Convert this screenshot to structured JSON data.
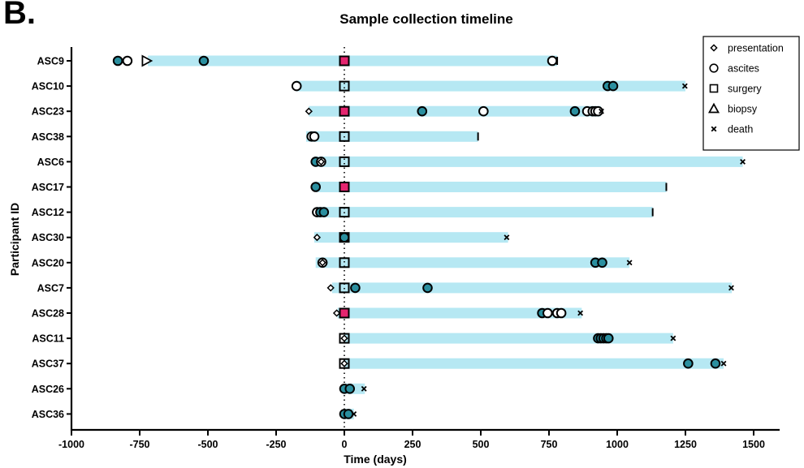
{
  "panel_letter": "B.",
  "chart_data": {
    "type": "scatter",
    "title": "Sample collection timeline",
    "xlabel": "Time (days)",
    "ylabel": "Participant ID",
    "xlim": [
      -1000,
      1600
    ],
    "xticks": [
      -1000,
      -750,
      -500,
      -250,
      0,
      250,
      500,
      750,
      1000,
      1250,
      1500
    ],
    "xtick_labels": [
      "-1000",
      "-750",
      "-500",
      "-250",
      "0",
      "250",
      "500",
      "750",
      "1000",
      "1250",
      "1500"
    ],
    "reference_line_x": 0,
    "legend": {
      "position": "top-right",
      "entries": [
        {
          "label": "presentation",
          "marker": "diamond"
        },
        {
          "label": "ascites",
          "marker": "circle"
        },
        {
          "label": "surgery",
          "marker": "square"
        },
        {
          "label": "biopsy",
          "marker": "triangle"
        },
        {
          "label": "death",
          "marker": "x"
        }
      ]
    },
    "colors": {
      "timeline_bar": "#b6e8f3",
      "ascites_fill": "#2a8f9f",
      "surgery_highlight": "#e5256f",
      "marker_outline": "#000000"
    },
    "participants": [
      {
        "id": "ASC9",
        "bar": [
          -720,
          780
        ],
        "events": [
          {
            "type": "ascites",
            "x": -830,
            "filled": true
          },
          {
            "type": "ascites",
            "x": -795,
            "filled": false
          },
          {
            "type": "biopsy",
            "x": -725
          },
          {
            "type": "ascites",
            "x": -515,
            "filled": true
          },
          {
            "type": "surgery",
            "x": 0,
            "highlight": true
          },
          {
            "type": "ascites",
            "x": 762,
            "filled": false
          },
          {
            "type": "end",
            "x": 780
          }
        ]
      },
      {
        "id": "ASC10",
        "bar": [
          -175,
          1250
        ],
        "events": [
          {
            "type": "presentation",
            "x": -175
          },
          {
            "type": "ascites",
            "x": -175,
            "filled": false
          },
          {
            "type": "surgery",
            "x": 0
          },
          {
            "type": "ascites",
            "x": 965,
            "filled": true
          },
          {
            "type": "ascites",
            "x": 985,
            "filled": true
          },
          {
            "type": "death",
            "x": 1248
          }
        ]
      },
      {
        "id": "ASC23",
        "bar": [
          -130,
          940
        ],
        "events": [
          {
            "type": "presentation",
            "x": -130
          },
          {
            "type": "surgery",
            "x": 0,
            "highlight": true
          },
          {
            "type": "ascites",
            "x": 285,
            "filled": true
          },
          {
            "type": "ascites",
            "x": 510,
            "filled": false
          },
          {
            "type": "ascites",
            "x": 845,
            "filled": true
          },
          {
            "type": "ascites",
            "x": 890,
            "filled": false
          },
          {
            "type": "ascites",
            "x": 910,
            "filled": false
          },
          {
            "type": "ascites",
            "x": 920,
            "filled": false
          },
          {
            "type": "ascites",
            "x": 930,
            "filled": false
          },
          {
            "type": "death",
            "x": 942
          }
        ]
      },
      {
        "id": "ASC38",
        "bar": [
          -140,
          490
        ],
        "events": [
          {
            "type": "ascites",
            "x": -120,
            "filled": false
          },
          {
            "type": "ascites",
            "x": -110,
            "filled": false
          },
          {
            "type": "surgery",
            "x": 0
          },
          {
            "type": "end",
            "x": 490
          }
        ]
      },
      {
        "id": "ASC6",
        "bar": [
          -110,
          1460
        ],
        "events": [
          {
            "type": "ascites",
            "x": -105,
            "filled": true
          },
          {
            "type": "ascites",
            "x": -85,
            "filled": false
          },
          {
            "type": "presentation",
            "x": -85
          },
          {
            "type": "surgery",
            "x": 0
          },
          {
            "type": "death",
            "x": 1460
          }
        ]
      },
      {
        "id": "ASC17",
        "bar": [
          -105,
          1180
        ],
        "events": [
          {
            "type": "ascites",
            "x": -105,
            "filled": true
          },
          {
            "type": "surgery",
            "x": 0,
            "highlight": true
          },
          {
            "type": "end",
            "x": 1180
          }
        ]
      },
      {
        "id": "ASC12",
        "bar": [
          -100,
          1130
        ],
        "events": [
          {
            "type": "ascites",
            "x": -100,
            "filled": false
          },
          {
            "type": "ascites",
            "x": -88,
            "filled": true
          },
          {
            "type": "ascites",
            "x": -75,
            "filled": true
          },
          {
            "type": "surgery",
            "x": 0
          },
          {
            "type": "end",
            "x": 1130
          }
        ]
      },
      {
        "id": "ASC30",
        "bar": [
          -110,
          600
        ],
        "events": [
          {
            "type": "presentation",
            "x": -100
          },
          {
            "type": "ascites",
            "x": 0,
            "filled": true
          },
          {
            "type": "surgery",
            "x": 0
          },
          {
            "type": "death",
            "x": 595
          }
        ]
      },
      {
        "id": "ASC20",
        "bar": [
          -105,
          1045
        ],
        "events": [
          {
            "type": "ascites",
            "x": -80,
            "filled": false
          },
          {
            "type": "presentation",
            "x": -80
          },
          {
            "type": "surgery",
            "x": 0
          },
          {
            "type": "ascites",
            "x": 920,
            "filled": true
          },
          {
            "type": "ascites",
            "x": 945,
            "filled": true
          },
          {
            "type": "death",
            "x": 1045
          }
        ]
      },
      {
        "id": "ASC7",
        "bar": [
          -45,
          1420
        ],
        "events": [
          {
            "type": "presentation",
            "x": -50
          },
          {
            "type": "surgery",
            "x": 0
          },
          {
            "type": "ascites",
            "x": 40,
            "filled": true
          },
          {
            "type": "ascites",
            "x": 305,
            "filled": true
          },
          {
            "type": "death",
            "x": 1418
          }
        ]
      },
      {
        "id": "ASC28",
        "bar": [
          -25,
          870
        ],
        "events": [
          {
            "type": "presentation",
            "x": -28
          },
          {
            "type": "surgery",
            "x": 0,
            "highlight": true
          },
          {
            "type": "ascites",
            "x": 725,
            "filled": true
          },
          {
            "type": "ascites",
            "x": 745,
            "filled": false
          },
          {
            "type": "ascites",
            "x": 780,
            "filled": false
          },
          {
            "type": "ascites",
            "x": 795,
            "filled": false
          },
          {
            "type": "death",
            "x": 865
          }
        ]
      },
      {
        "id": "ASC11",
        "bar": [
          0,
          1205
        ],
        "events": [
          {
            "type": "presentation",
            "x": 0
          },
          {
            "type": "surgery",
            "x": 0
          },
          {
            "type": "ascites",
            "x": 930,
            "filled": true
          },
          {
            "type": "ascites",
            "x": 940,
            "filled": true
          },
          {
            "type": "ascites",
            "x": 950,
            "filled": true
          },
          {
            "type": "ascites",
            "x": 960,
            "filled": true
          },
          {
            "type": "ascites",
            "x": 968,
            "filled": true
          },
          {
            "type": "death",
            "x": 1205
          }
        ]
      },
      {
        "id": "ASC37",
        "bar": [
          0,
          1390
        ],
        "events": [
          {
            "type": "presentation",
            "x": 0
          },
          {
            "type": "surgery",
            "x": 0
          },
          {
            "type": "ascites",
            "x": 1260,
            "filled": true
          },
          {
            "type": "ascites",
            "x": 1360,
            "filled": true
          },
          {
            "type": "death",
            "x": 1390
          }
        ]
      },
      {
        "id": "ASC26",
        "bar": [
          0,
          75
        ],
        "events": [
          {
            "type": "ascites",
            "x": 0,
            "filled": true
          },
          {
            "type": "ascites",
            "x": 20,
            "filled": true
          },
          {
            "type": "death",
            "x": 72
          }
        ]
      },
      {
        "id": "ASC36",
        "bar": [
          0,
          35
        ],
        "events": [
          {
            "type": "ascites",
            "x": 0,
            "filled": true
          },
          {
            "type": "ascites",
            "x": 15,
            "filled": true
          },
          {
            "type": "death",
            "x": 35
          }
        ]
      }
    ]
  }
}
